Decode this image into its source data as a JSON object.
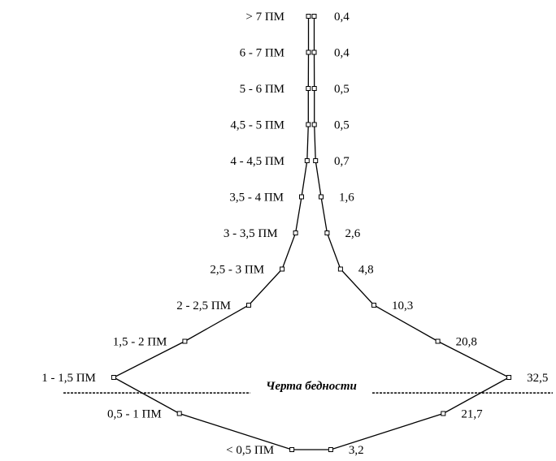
{
  "chart_data": {
    "type": "line",
    "subtype": "symmetric-distribution-diamond",
    "categories": [
      "> 7 ПМ",
      "6 - 7 ПМ",
      "5 - 6 ПМ",
      "4,5 - 5 ПМ",
      "4 - 4,5 ПМ",
      "3,5 - 4 ПМ",
      "3 - 3,5 ПМ",
      "2,5 - 3 ПМ",
      "2 - 2,5 ПМ",
      "1,5 - 2 ПМ",
      "1 - 1,5 ПМ",
      "0,5 - 1 ПМ",
      "< 0,5 ПМ"
    ],
    "values": [
      0.4,
      0.4,
      0.5,
      0.5,
      0.7,
      1.6,
      2.6,
      4.8,
      10.3,
      20.8,
      32.5,
      21.7,
      3.2
    ],
    "value_labels": [
      "0,4",
      "0,4",
      "0,5",
      "0,5",
      "0,7",
      "1,6",
      "2,6",
      "4,8",
      "10,3",
      "20,8",
      "32,5",
      "21,7",
      "3,2"
    ],
    "poverty_line": {
      "label": "Черта бедности",
      "between": [
        "1 - 1,5 ПМ",
        "0,5 - 1 ПМ"
      ]
    },
    "title": "",
    "xlabel": "",
    "ylabel": "",
    "grid": false,
    "legend": "none"
  }
}
